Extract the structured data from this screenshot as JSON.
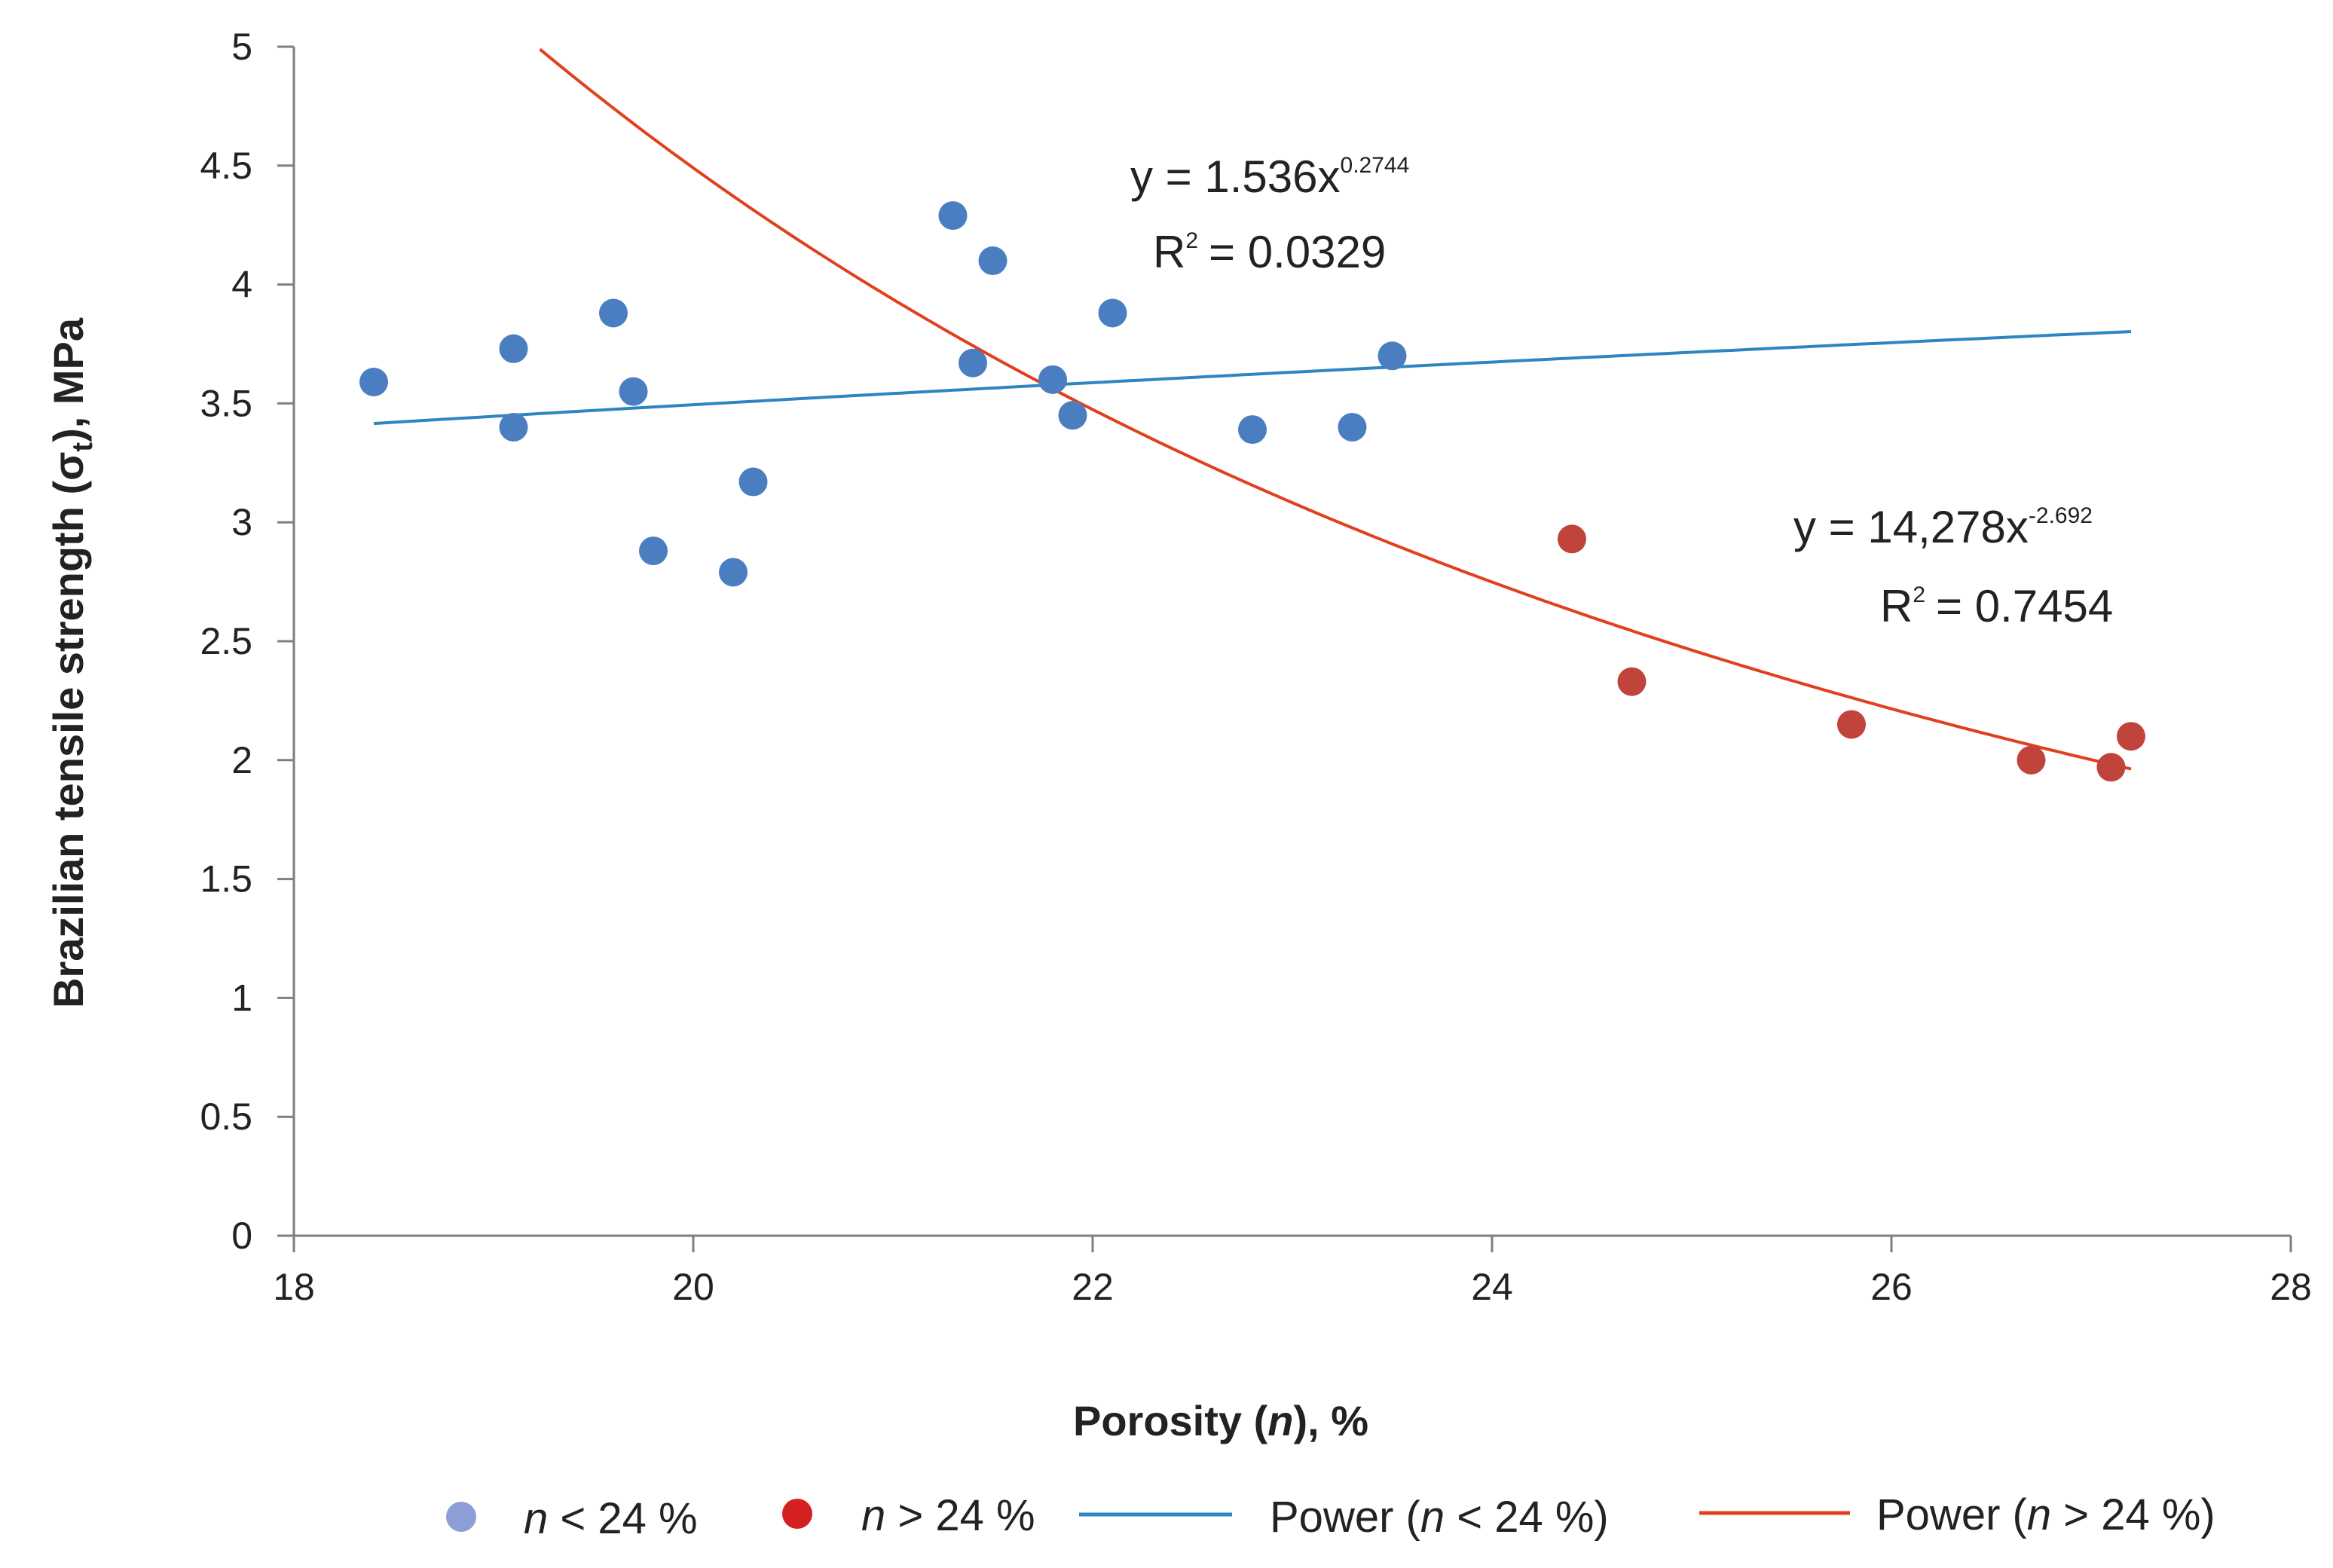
{
  "chart_data": {
    "type": "scatter",
    "title": "",
    "xlabel": "Porosity (n), %",
    "ylabel": "Brazilian tensile strength (σt), MPa",
    "xlim": [
      18,
      28
    ],
    "ylim": [
      0,
      5
    ],
    "x_ticks": [
      18,
      20,
      22,
      24,
      26,
      28
    ],
    "y_ticks": [
      0,
      0.5,
      1,
      1.5,
      2,
      2.5,
      3,
      3.5,
      4,
      4.5,
      5
    ],
    "grid": false,
    "legend_position": "bottom",
    "series": [
      {
        "name": "n < 24 %",
        "color": "#4a7ec0",
        "legend_color": "#8b9fd6",
        "points": [
          {
            "x": 18.4,
            "y": 3.59
          },
          {
            "x": 19.1,
            "y": 3.73
          },
          {
            "x": 19.1,
            "y": 3.4
          },
          {
            "x": 19.6,
            "y": 3.88
          },
          {
            "x": 19.7,
            "y": 3.55
          },
          {
            "x": 19.8,
            "y": 2.88
          },
          {
            "x": 20.2,
            "y": 2.79
          },
          {
            "x": 20.3,
            "y": 3.17
          },
          {
            "x": 21.3,
            "y": 4.29
          },
          {
            "x": 21.4,
            "y": 3.67
          },
          {
            "x": 21.5,
            "y": 4.1
          },
          {
            "x": 21.8,
            "y": 3.6
          },
          {
            "x": 21.9,
            "y": 3.45
          },
          {
            "x": 22.1,
            "y": 3.88
          },
          {
            "x": 22.8,
            "y": 3.39
          },
          {
            "x": 23.3,
            "y": 3.4
          },
          {
            "x": 23.5,
            "y": 3.7
          }
        ]
      },
      {
        "name": "n > 24 %",
        "color": "#c0443c",
        "legend_color": "#d42020",
        "points": [
          {
            "x": 24.4,
            "y": 2.93
          },
          {
            "x": 24.7,
            "y": 2.33
          },
          {
            "x": 25.8,
            "y": 2.15
          },
          {
            "x": 26.7,
            "y": 2.0
          },
          {
            "x": 27.1,
            "y": 1.97
          },
          {
            "x": 27.2,
            "y": 2.1
          }
        ]
      }
    ],
    "trendlines": [
      {
        "name": "Power (n < 24 %)",
        "color": "#2e86c1",
        "coef": 1.536,
        "exponent": 0.2744,
        "x_range": [
          18.4,
          27.2
        ],
        "equation_base": "y = 1.536x",
        "equation_exp": "0.2744",
        "r2_value": "= 0.0329"
      },
      {
        "name": "Power (n > 24 %)",
        "color": "#e0401e",
        "coef": 14278,
        "exponent": -2.692,
        "x_range": [
          18.9,
          27.2
        ],
        "equation_base": "y = 14,278x",
        "equation_exp": "-2.692",
        "r2_value": "= 0.7454"
      }
    ],
    "legend": {
      "items": [
        {
          "kind": "marker",
          "italic": "n",
          "rest": " < 24 %"
        },
        {
          "kind": "marker",
          "italic": "n",
          "rest": " > 24 %"
        },
        {
          "kind": "line",
          "prefix": "Power (",
          "italic": "n",
          "rest": " < 24 %)"
        },
        {
          "kind": "line",
          "prefix": "Power (",
          "italic": "n",
          "rest": " > 24 %)"
        }
      ]
    }
  }
}
